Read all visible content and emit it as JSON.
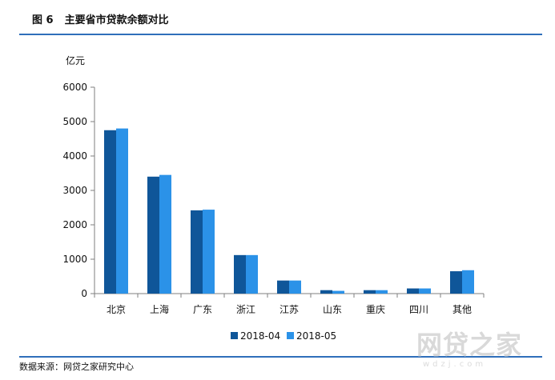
{
  "figure": {
    "number": "图 6",
    "title": "主要省市贷款余额对比",
    "source": "数据来源：网贷之家研究中心"
  },
  "watermark": {
    "text": "网贷之家",
    "domain": "wdzj.com"
  },
  "colors": {
    "rule": "#2f6fba",
    "series_1": "#0f5699",
    "series_2": "#2b92e8",
    "axis": "#7f7f7f"
  },
  "chart_data": {
    "type": "bar",
    "unit_label": "亿元",
    "categories": [
      "北京",
      "上海",
      "广东",
      "浙江",
      "江苏",
      "山东",
      "重庆",
      "四川",
      "其他"
    ],
    "series": [
      {
        "name": "2018-04",
        "values": [
          4750,
          3400,
          2420,
          1120,
          380,
          100,
          100,
          150,
          650
        ]
      },
      {
        "name": "2018-05",
        "values": [
          4800,
          3450,
          2440,
          1120,
          380,
          80,
          100,
          150,
          680
        ]
      }
    ],
    "ylim": [
      0,
      6000
    ],
    "yticks": [
      0,
      1000,
      2000,
      3000,
      4000,
      5000,
      6000
    ],
    "legend_position": "bottom",
    "grid": false
  }
}
